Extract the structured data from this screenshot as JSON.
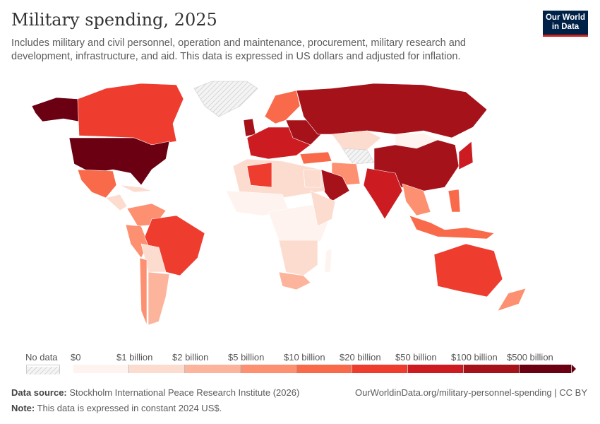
{
  "header": {
    "title": "Military spending, 2025",
    "subtitle": "Includes military and civil personnel, operation and maintenance, procurement, military research and development, infrastructure, and aid. This data is expressed in US dollars and adjusted for inflation.",
    "logo_text": "Our World in Data"
  },
  "legend": {
    "no_data_label": "No data",
    "bin_labels": [
      "$0",
      "$1 billion",
      "$2 billion",
      "$5 billion",
      "$10 billion",
      "$20 billion",
      "$50 billion",
      "$100 billion",
      "$500 billion"
    ],
    "bin_colors": [
      "#fef3ee",
      "#fddcd0",
      "#fcb59c",
      "#fc9070",
      "#f96a4a",
      "#ee3d2f",
      "#cc1c22",
      "#a51219",
      "#6a0012"
    ]
  },
  "footer": {
    "source_label": "Data source:",
    "source_text": "Stockholm International Peace Research Institute (2026)",
    "note_label": "Note:",
    "note_text": "This data is expressed in constant 2024 US$.",
    "url_text": "OurWorldinData.org/military-personnel-spending | CC BY"
  }
}
